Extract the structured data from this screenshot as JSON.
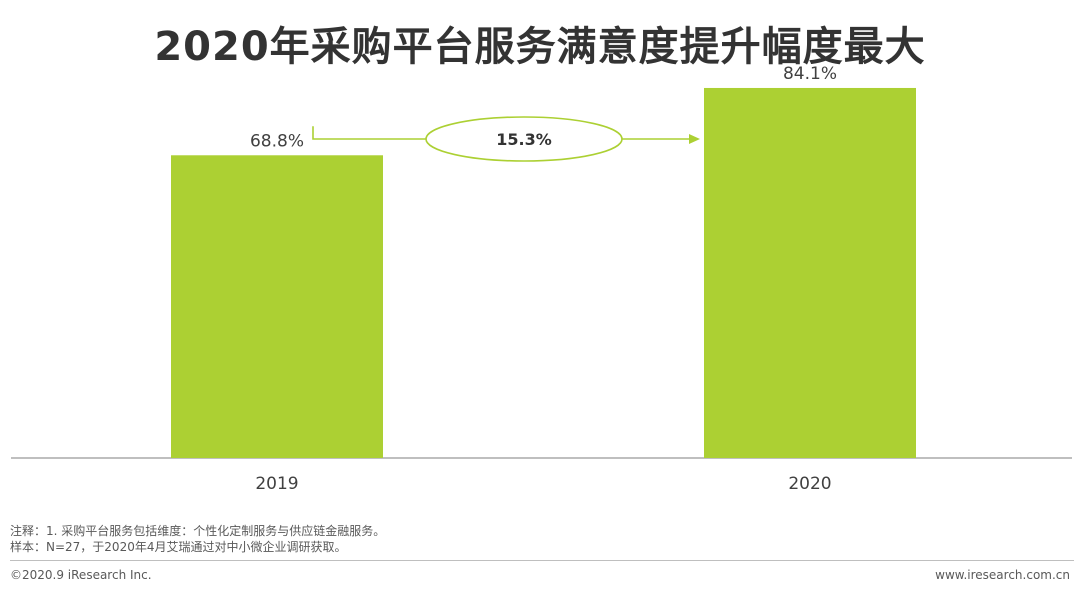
{
  "chart_data": {
    "type": "bar",
    "title": "2020年采购平台服务满意度提升幅度最大",
    "categories": [
      "2019",
      "2020"
    ],
    "values": [
      68.8,
      84.1
    ],
    "value_labels": [
      "68.8%",
      "84.1%"
    ],
    "unit": "%",
    "ylim": [
      0,
      100
    ],
    "xlabel": "",
    "ylabel": "",
    "grid": false,
    "annotation": {
      "text": "15.3%",
      "type": "arrow",
      "from": "2019",
      "to": "2020"
    },
    "colors": {
      "bar": "#acd033",
      "accent": "#acd033",
      "axis": "#7f7f7f"
    }
  },
  "notes": {
    "line1": "注释：1. 采购平台服务包括维度：个性化定制服务与供应链金融服务。",
    "line2": "样本：N=27，于2020年4月艾瑞通过对中小微企业调研获取。"
  },
  "footer": {
    "copyright": "©2020.9 iResearch Inc.",
    "website": "www.iresearch.com.cn"
  }
}
